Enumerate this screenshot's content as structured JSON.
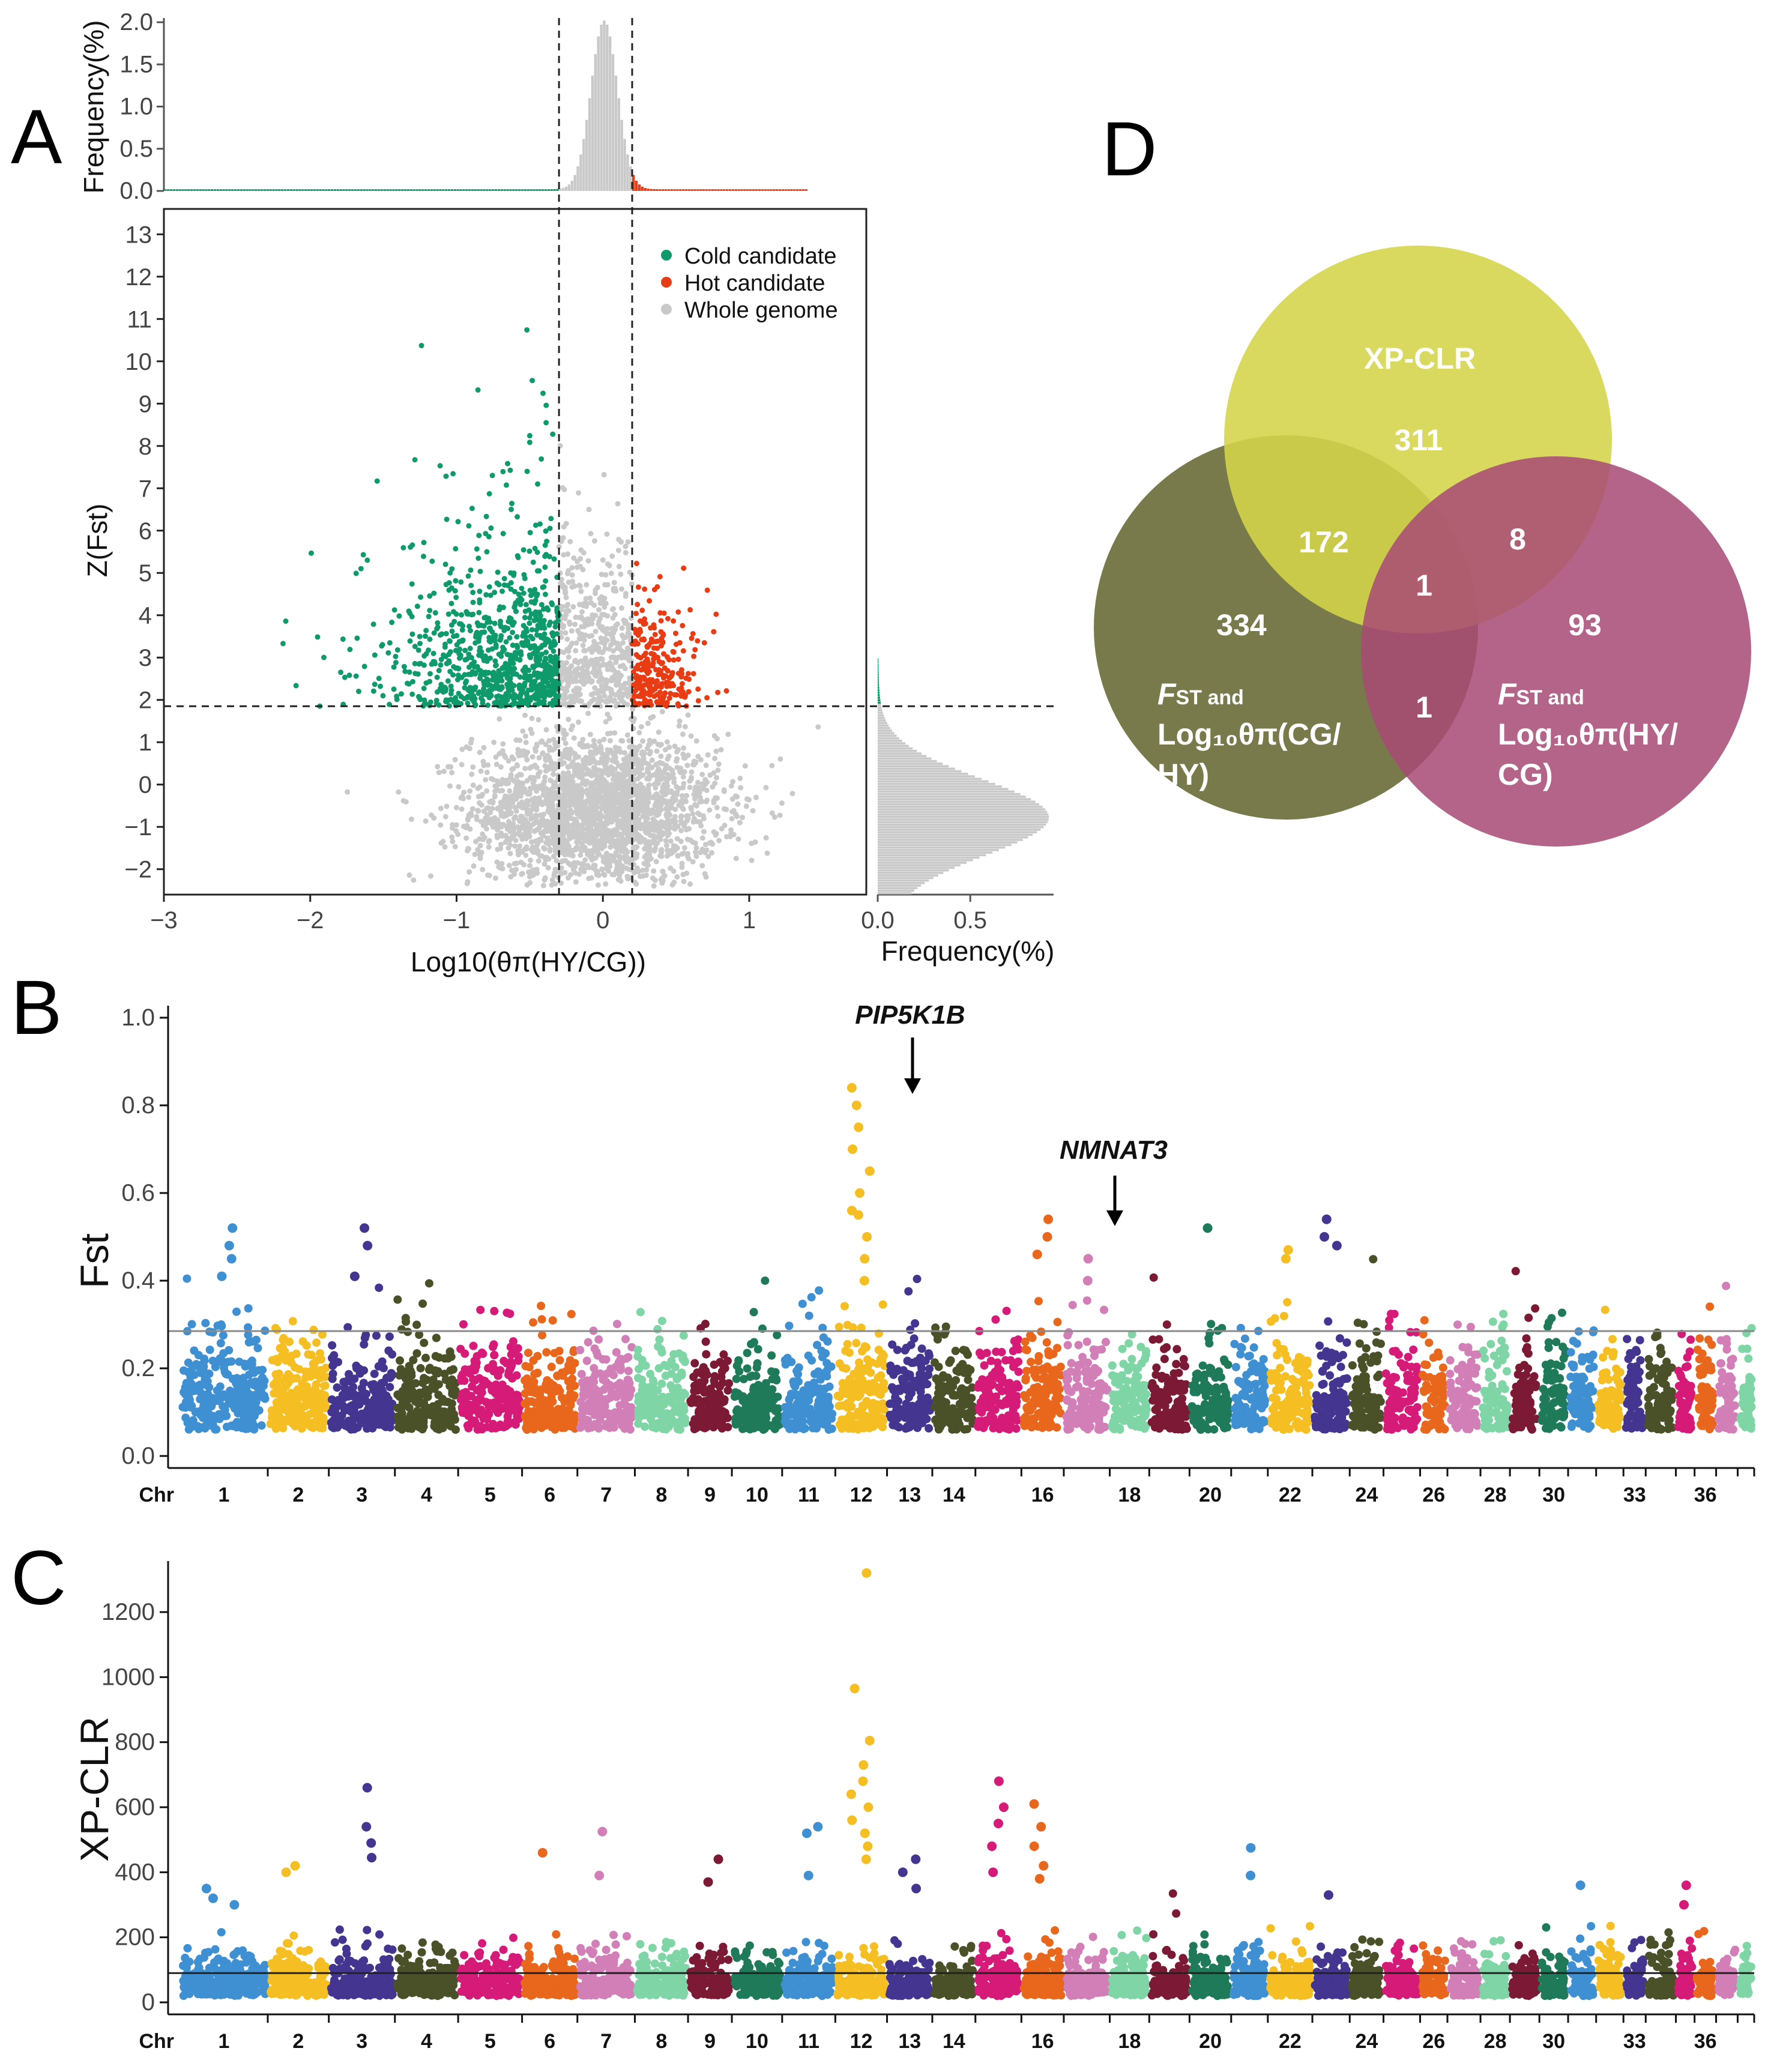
{
  "panels": {
    "a": "A",
    "b": "B",
    "c": "C",
    "d": "D"
  },
  "chart_data": [
    {
      "type": "scatter",
      "id": "A",
      "xlabel": "Log10(θπ(HY/CG))",
      "ylabel": "Z(Fst)",
      "xlim": [
        -3,
        1.8
      ],
      "ylim": [
        -2.6,
        13.6
      ],
      "xticks": [
        "−3",
        "−2",
        "−1",
        "0",
        "1"
      ],
      "yticks": [
        "−2",
        "−1",
        "0",
        "1",
        "2",
        "3",
        "4",
        "5",
        "6",
        "7",
        "8",
        "9",
        "10",
        "11",
        "12",
        "13"
      ],
      "thresholds": {
        "x_low": -0.3,
        "x_high": 0.2,
        "y": 1.85
      },
      "legend": [
        {
          "label": "Cold candidate",
          "color": "#0e9a6a"
        },
        {
          "label": "Hot candidate",
          "color": "#ea3c14"
        },
        {
          "label": "Whole genome",
          "color": "#c9c9c9"
        }
      ],
      "top_histogram": {
        "ylabel": "Frequency(%)",
        "yticks": [
          "0.0",
          "0.5",
          "1.0",
          "1.5",
          "2.0"
        ],
        "ylim": [
          0,
          2.05
        ],
        "peak_x": 0.0
      },
      "right_histogram": {
        "xlabel": "Frequency(%)",
        "xticks": [
          "0.0",
          "0.5"
        ],
        "xlim": [
          0,
          0.95
        ],
        "peak_y": -0.8
      }
    },
    {
      "type": "scatter",
      "id": "B",
      "ylabel": "Fst",
      "ylim": [
        0,
        1.0
      ],
      "yticks": [
        "0.0",
        "0.2",
        "0.4",
        "0.6",
        "0.8",
        "1.0"
      ],
      "threshold": 0.285,
      "x_axis_prefix": "Chr",
      "chromosome_labels": [
        "1",
        "2",
        "3",
        "4",
        "5",
        "6",
        "7",
        "8",
        "9",
        "10",
        "11",
        "12",
        "13",
        "14",
        "16",
        "18",
        "20",
        "22",
        "24",
        "26",
        "28",
        "30",
        "33",
        "36"
      ],
      "annotations": [
        {
          "label": "PIP5K1B",
          "chr": 12,
          "value": 0.84
        },
        {
          "label": "NMNAT3",
          "chr": 16,
          "value": 0.54
        }
      ]
    },
    {
      "type": "scatter",
      "id": "C",
      "ylabel": "XP-CLR",
      "ylim": [
        0,
        1320
      ],
      "yticks": [
        "0",
        "200",
        "400",
        "600",
        "800",
        "1000",
        "1200"
      ],
      "threshold": 90,
      "x_axis_prefix": "Chr",
      "chromosome_labels": [
        "1",
        "2",
        "3",
        "4",
        "5",
        "6",
        "7",
        "8",
        "9",
        "10",
        "11",
        "12",
        "13",
        "14",
        "16",
        "18",
        "20",
        "22",
        "24",
        "26",
        "28",
        "30",
        "33",
        "36"
      ]
    },
    {
      "type": "venn",
      "id": "D",
      "sets": [
        {
          "name": "XP-CLR",
          "color": "#d4d44a"
        },
        {
          "name": "FST and Log10θπ(CG/HY)",
          "color": "#787a4c"
        },
        {
          "name": "FST and Log10θπ(HY/CG)",
          "color": "#a84b75"
        }
      ],
      "regions": {
        "xpclr_only": "311",
        "fst_cg_only": "334",
        "fst_hy_only": "93",
        "xpclr_fst_cg": "172",
        "xpclr_fst_hy": "8",
        "all_three": "1",
        "fst_cg_fst_hy": "1"
      },
      "label_xpclr": "XP-CLR",
      "label_cg_lines": [
        "ST and",
        "Log₁₀θπ(CG/",
        "HY)"
      ],
      "label_hy_lines": [
        "ST and",
        "Log₁₀θπ(HY/",
        "CG)"
      ]
    }
  ]
}
